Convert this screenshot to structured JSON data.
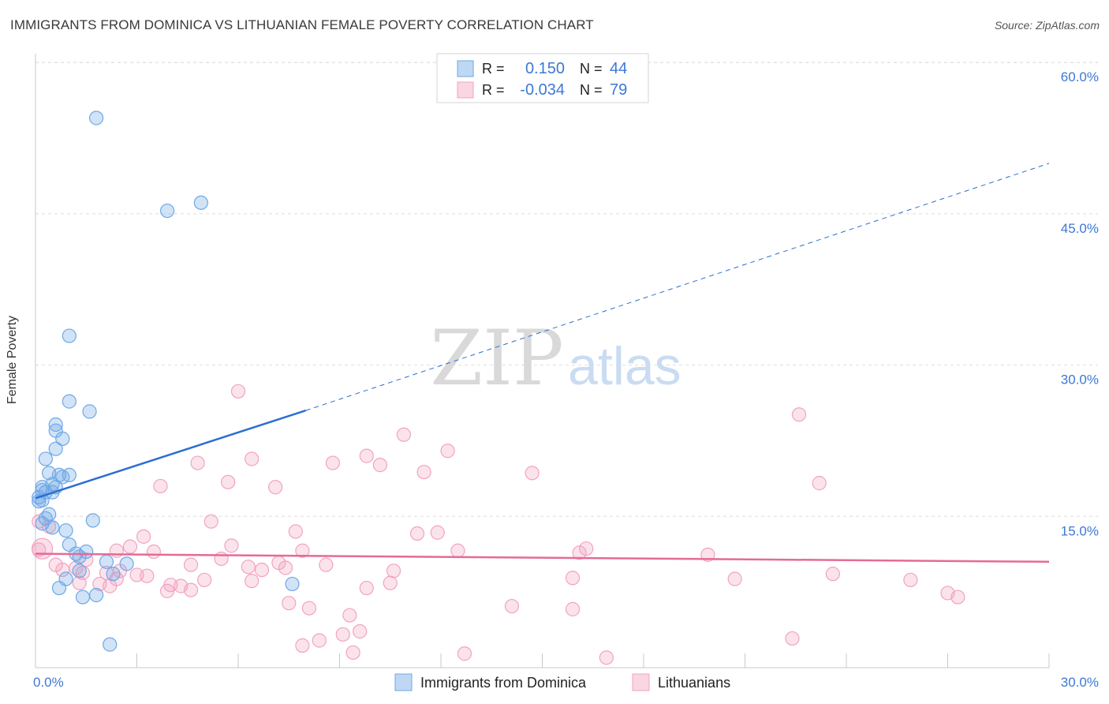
{
  "header": {
    "title": "IMMIGRANTS FROM DOMINICA VS LITHUANIAN FEMALE POVERTY CORRELATION CHART",
    "source": "Source: ZipAtlas.com"
  },
  "watermark": {
    "zip": "ZIP",
    "atlas": "atlas"
  },
  "colors": {
    "blue": "#6fa8e6",
    "blue_line": "#2b6fd0",
    "pink": "#f2a3bf",
    "pink_line": "#e56a98",
    "tick_label": "#3d78d6"
  },
  "chart_data": {
    "type": "scatter",
    "xlabel": "",
    "ylabel": "Female Poverty",
    "xlim": [
      0,
      30
    ],
    "ylim": [
      0,
      60
    ],
    "x_ticks": [
      0,
      30
    ],
    "x_tick_labels": [
      "0.0%",
      "30.0%"
    ],
    "y_ticks": [
      15,
      30,
      45,
      60
    ],
    "y_tick_labels": [
      "15.0%",
      "30.0%",
      "45.0%",
      "60.0%"
    ],
    "grid": true,
    "legend_top": {
      "rows": [
        {
          "r_label": "R =",
          "r_value": "0.150",
          "n_label": "N =",
          "n_value": "44"
        },
        {
          "r_label": "R =",
          "r_value": "-0.034",
          "n_label": "N =",
          "n_value": "79"
        }
      ]
    },
    "series": [
      {
        "name": "Immigrants from Dominica",
        "color": "#6fa8e6",
        "trend": {
          "x0": 0,
          "y0": 16.8,
          "x1": 8,
          "y1": 25.5,
          "dash_to_x": 30,
          "dash_to_y": 50.0
        },
        "points": [
          [
            1.8,
            54.5
          ],
          [
            3.9,
            45.3
          ],
          [
            4.9,
            46.1
          ],
          [
            1.0,
            32.9
          ],
          [
            1.0,
            26.4
          ],
          [
            1.6,
            25.4
          ],
          [
            0.6,
            24.1
          ],
          [
            0.6,
            23.5
          ],
          [
            0.8,
            22.7
          ],
          [
            0.6,
            21.7
          ],
          [
            0.3,
            20.7
          ],
          [
            0.4,
            19.3
          ],
          [
            0.7,
            19.1
          ],
          [
            1.0,
            19.1
          ],
          [
            0.8,
            18.9
          ],
          [
            0.5,
            18.2
          ],
          [
            0.2,
            17.9
          ],
          [
            0.6,
            17.9
          ],
          [
            0.2,
            17.6
          ],
          [
            0.3,
            17.4
          ],
          [
            0.5,
            17.4
          ],
          [
            0.1,
            16.9
          ],
          [
            0.2,
            16.6
          ],
          [
            0.1,
            16.5
          ],
          [
            0.4,
            15.2
          ],
          [
            0.3,
            14.8
          ],
          [
            1.7,
            14.6
          ],
          [
            0.2,
            14.3
          ],
          [
            0.5,
            13.9
          ],
          [
            0.9,
            13.6
          ],
          [
            1.0,
            12.2
          ],
          [
            1.2,
            11.3
          ],
          [
            1.5,
            11.5
          ],
          [
            1.3,
            11.0
          ],
          [
            2.7,
            10.3
          ],
          [
            2.1,
            10.5
          ],
          [
            1.3,
            9.6
          ],
          [
            2.3,
            9.3
          ],
          [
            0.9,
            8.8
          ],
          [
            7.6,
            8.3
          ],
          [
            0.7,
            7.9
          ],
          [
            1.4,
            7.0
          ],
          [
            1.8,
            7.2
          ],
          [
            2.2,
            2.3
          ]
        ]
      },
      {
        "name": "Lithuanians",
        "color": "#f2a3bf",
        "trend": {
          "x0": 0,
          "y0": 11.3,
          "x1": 30,
          "y1": 10.5
        },
        "points": [
          [
            6.0,
            27.4
          ],
          [
            22.6,
            25.1
          ],
          [
            10.9,
            23.1
          ],
          [
            12.2,
            21.5
          ],
          [
            9.8,
            21.0
          ],
          [
            6.4,
            20.7
          ],
          [
            8.8,
            20.3
          ],
          [
            4.8,
            20.3
          ],
          [
            10.2,
            20.1
          ],
          [
            11.5,
            19.4
          ],
          [
            14.7,
            19.3
          ],
          [
            23.2,
            18.3
          ],
          [
            5.7,
            18.4
          ],
          [
            3.7,
            18.0
          ],
          [
            7.1,
            17.9
          ],
          [
            5.2,
            14.5
          ],
          [
            7.7,
            13.5
          ],
          [
            11.3,
            13.3
          ],
          [
            11.9,
            13.4
          ],
          [
            3.2,
            13.0
          ],
          [
            0.1,
            14.5
          ],
          [
            0.4,
            14.0
          ],
          [
            2.8,
            12.0
          ],
          [
            5.8,
            12.1
          ],
          [
            7.9,
            11.6
          ],
          [
            12.5,
            11.6
          ],
          [
            16.3,
            11.8
          ],
          [
            16.1,
            11.4
          ],
          [
            19.9,
            11.2
          ],
          [
            3.5,
            11.5
          ],
          [
            2.4,
            11.6
          ],
          [
            0.1,
            11.7
          ],
          [
            0.6,
            10.2
          ],
          [
            1.5,
            10.7
          ],
          [
            4.6,
            10.2
          ],
          [
            5.5,
            10.8
          ],
          [
            6.3,
            10.0
          ],
          [
            7.2,
            10.4
          ],
          [
            7.4,
            9.9
          ],
          [
            8.6,
            10.2
          ],
          [
            1.2,
            9.9
          ],
          [
            0.8,
            9.7
          ],
          [
            1.4,
            9.4
          ],
          [
            2.1,
            9.4
          ],
          [
            2.5,
            9.6
          ],
          [
            3.0,
            9.2
          ],
          [
            3.3,
            9.1
          ],
          [
            6.7,
            9.7
          ],
          [
            10.6,
            9.6
          ],
          [
            23.6,
            9.3
          ],
          [
            25.9,
            8.7
          ],
          [
            2.4,
            8.8
          ],
          [
            5.0,
            8.7
          ],
          [
            6.4,
            8.6
          ],
          [
            10.5,
            8.4
          ],
          [
            15.9,
            8.9
          ],
          [
            20.7,
            8.8
          ],
          [
            1.3,
            8.4
          ],
          [
            1.9,
            8.3
          ],
          [
            2.2,
            8.1
          ],
          [
            4.0,
            8.2
          ],
          [
            4.3,
            8.1
          ],
          [
            9.8,
            7.9
          ],
          [
            3.9,
            7.6
          ],
          [
            4.6,
            7.7
          ],
          [
            27.0,
            7.4
          ],
          [
            27.3,
            7.0
          ],
          [
            7.5,
            6.4
          ],
          [
            8.1,
            5.9
          ],
          [
            14.1,
            6.1
          ],
          [
            15.9,
            5.8
          ],
          [
            9.3,
            5.2
          ],
          [
            9.6,
            3.6
          ],
          [
            9.1,
            3.3
          ],
          [
            8.4,
            2.7
          ],
          [
            22.4,
            2.9
          ],
          [
            7.9,
            2.2
          ],
          [
            9.4,
            1.5
          ],
          [
            12.7,
            1.4
          ],
          [
            16.9,
            1.0
          ]
        ]
      }
    ]
  }
}
